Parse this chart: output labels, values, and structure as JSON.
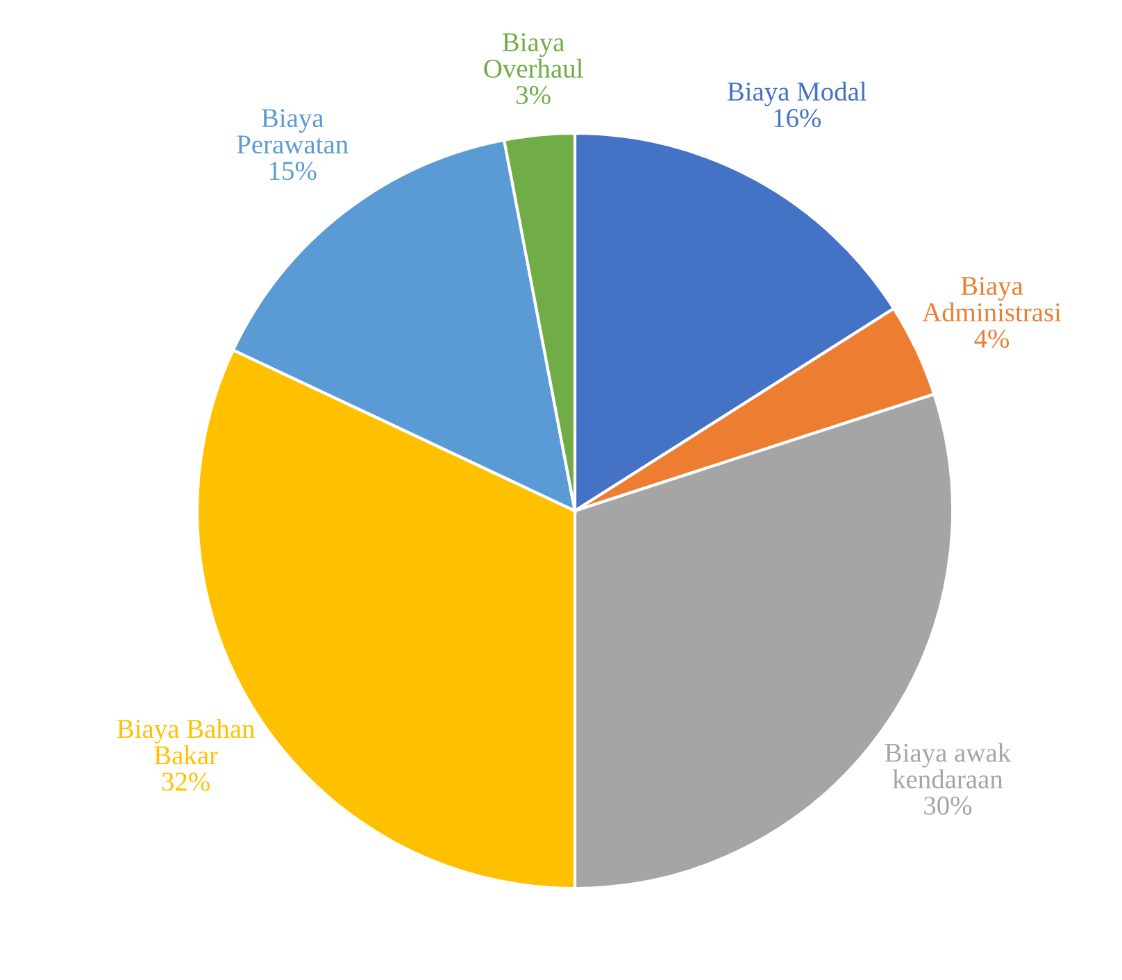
{
  "chart_data": {
    "type": "pie",
    "categories": [
      "Biaya Modal",
      "Biaya\nAdministrasi",
      "Biaya awak\nkendaraan",
      "Biaya Bahan\nBakar",
      "Biaya\nPerawatan",
      "Biaya\nOverhaul"
    ],
    "values": [
      16,
      4,
      30,
      32,
      15,
      3
    ],
    "value_labels": [
      "16%",
      "4%",
      "30%",
      "32%",
      "15%",
      "3%"
    ],
    "colors": [
      "#4472c4",
      "#ed7d31",
      "#a5a5a5",
      "#ffc000",
      "#5b9bd5",
      "#70ad47"
    ],
    "legend": false
  }
}
